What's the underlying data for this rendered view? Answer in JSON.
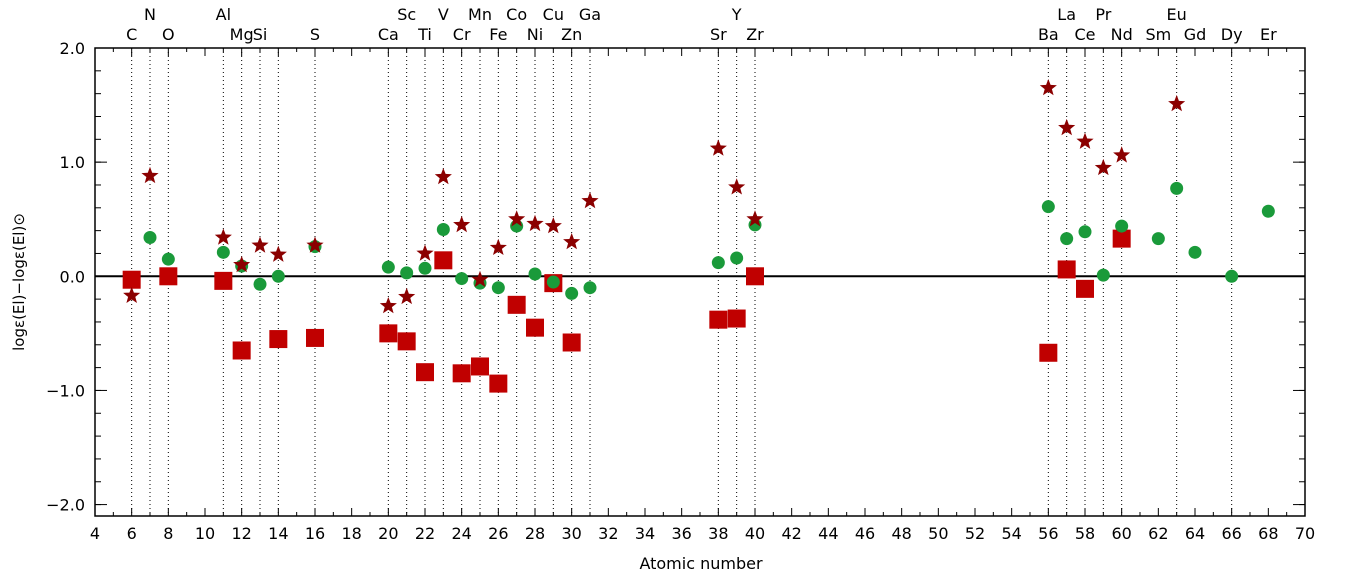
{
  "chart_data": {
    "type": "scatter",
    "xlabel": "Atomic number",
    "ylabel": "logε(El)−logε(El)⊙",
    "xlim": [
      4,
      70
    ],
    "ylim": [
      -2.1,
      2.0
    ],
    "x_ticks": [
      "4",
      "6",
      "8",
      "10",
      "12",
      "14",
      "16",
      "18",
      "20",
      "22",
      "24",
      "26",
      "28",
      "30",
      "32",
      "34",
      "36",
      "38",
      "40",
      "42",
      "44",
      "46",
      "48",
      "50",
      "52",
      "54",
      "56",
      "58",
      "60",
      "62",
      "64",
      "66",
      "68",
      "70"
    ],
    "y_ticks": [
      "2.0",
      "1.0",
      "0.0",
      "−1.0",
      "−2.0"
    ],
    "reference_line": 0.0,
    "colors": {
      "star": "#8b0000",
      "circle": "#1a9a3a",
      "square": "#c00000"
    },
    "elements": [
      {
        "z": 6,
        "symbol": "C",
        "row": "bottom"
      },
      {
        "z": 7,
        "symbol": "N",
        "row": "top"
      },
      {
        "z": 8,
        "symbol": "O",
        "row": "bottom"
      },
      {
        "z": 11,
        "symbol": "Al",
        "row": "top"
      },
      {
        "z": 12,
        "symbol": "Mg",
        "row": "bottom"
      },
      {
        "z": 13,
        "symbol": "Si",
        "row": "bottom"
      },
      {
        "z": 16,
        "symbol": "S",
        "row": "bottom"
      },
      {
        "z": 20,
        "symbol": "Ca",
        "row": "bottom"
      },
      {
        "z": 21,
        "symbol": "Sc",
        "row": "top"
      },
      {
        "z": 22,
        "symbol": "Ti",
        "row": "bottom"
      },
      {
        "z": 23,
        "symbol": "V",
        "row": "top"
      },
      {
        "z": 24,
        "symbol": "Cr",
        "row": "bottom"
      },
      {
        "z": 25,
        "symbol": "Mn",
        "row": "top"
      },
      {
        "z": 26,
        "symbol": "Fe",
        "row": "bottom"
      },
      {
        "z": 27,
        "symbol": "Co",
        "row": "top"
      },
      {
        "z": 28,
        "symbol": "Ni",
        "row": "bottom"
      },
      {
        "z": 29,
        "symbol": "Cu",
        "row": "top"
      },
      {
        "z": 30,
        "symbol": "Zn",
        "row": "bottom"
      },
      {
        "z": 31,
        "symbol": "Ga",
        "row": "top"
      },
      {
        "z": 38,
        "symbol": "Sr",
        "row": "bottom"
      },
      {
        "z": 39,
        "symbol": "Y",
        "row": "top"
      },
      {
        "z": 40,
        "symbol": "Zr",
        "row": "bottom"
      },
      {
        "z": 56,
        "symbol": "Ba",
        "row": "bottom"
      },
      {
        "z": 57,
        "symbol": "La",
        "row": "top"
      },
      {
        "z": 58,
        "symbol": "Ce",
        "row": "bottom"
      },
      {
        "z": 59,
        "symbol": "Pr",
        "row": "top"
      },
      {
        "z": 60,
        "symbol": "Nd",
        "row": "bottom"
      },
      {
        "z": 62,
        "symbol": "Sm",
        "row": "bottom"
      },
      {
        "z": 63,
        "symbol": "Eu",
        "row": "top"
      },
      {
        "z": 64,
        "symbol": "Gd",
        "row": "bottom"
      },
      {
        "z": 66,
        "symbol": "Dy",
        "row": "bottom"
      },
      {
        "z": 68,
        "symbol": "Er",
        "row": "bottom"
      }
    ],
    "gridlines_at": [
      6,
      7,
      8,
      11,
      12,
      13,
      14,
      16,
      20,
      21,
      22,
      23,
      24,
      25,
      26,
      27,
      28,
      29,
      30,
      31,
      38,
      39,
      40,
      56,
      57,
      58,
      59,
      60,
      63,
      66
    ],
    "series": [
      {
        "marker": "star",
        "x": [
          6,
          7,
          11,
          12,
          13,
          14,
          16,
          20,
          21,
          22,
          23,
          24,
          25,
          26,
          27,
          28,
          29,
          30,
          31,
          38,
          39,
          40,
          56,
          57,
          58,
          59,
          60,
          63
        ],
        "y": [
          -0.17,
          0.88,
          0.34,
          0.1,
          0.27,
          0.19,
          0.27,
          -0.26,
          -0.18,
          0.2,
          0.87,
          0.45,
          -0.03,
          0.25,
          0.5,
          0.46,
          0.44,
          0.3,
          0.66,
          1.12,
          0.78,
          0.5,
          1.65,
          1.3,
          1.18,
          0.95,
          1.06,
          1.51
        ]
      },
      {
        "marker": "circle",
        "x": [
          7,
          8,
          11,
          12,
          13,
          14,
          16,
          20,
          21,
          22,
          23,
          24,
          25,
          26,
          27,
          28,
          29,
          30,
          31,
          38,
          39,
          40,
          56,
          57,
          58,
          59,
          60,
          62,
          63,
          64,
          66,
          68
        ],
        "y": [
          0.34,
          0.15,
          0.21,
          0.09,
          -0.07,
          0.0,
          0.26,
          0.08,
          0.03,
          0.07,
          0.41,
          -0.02,
          -0.06,
          -0.1,
          0.44,
          0.02,
          -0.05,
          -0.15,
          -0.1,
          0.12,
          0.16,
          0.45,
          0.61,
          0.33,
          0.39,
          0.01,
          0.44,
          0.33,
          0.77,
          0.21,
          0.0,
          0.57
        ]
      },
      {
        "marker": "square",
        "x": [
          6,
          8,
          11,
          12,
          14,
          16,
          20,
          21,
          22,
          23,
          24,
          25,
          26,
          27,
          28,
          29,
          30,
          38,
          39,
          40,
          56,
          57,
          58,
          60
        ],
        "y": [
          -0.03,
          0.0,
          -0.04,
          -0.65,
          -0.55,
          -0.54,
          -0.5,
          -0.57,
          -0.84,
          0.14,
          -0.85,
          -0.79,
          -0.94,
          -0.25,
          -0.45,
          -0.06,
          -0.58,
          -0.38,
          -0.37,
          0.0,
          -0.67,
          0.06,
          -0.11,
          0.33
        ]
      }
    ]
  }
}
